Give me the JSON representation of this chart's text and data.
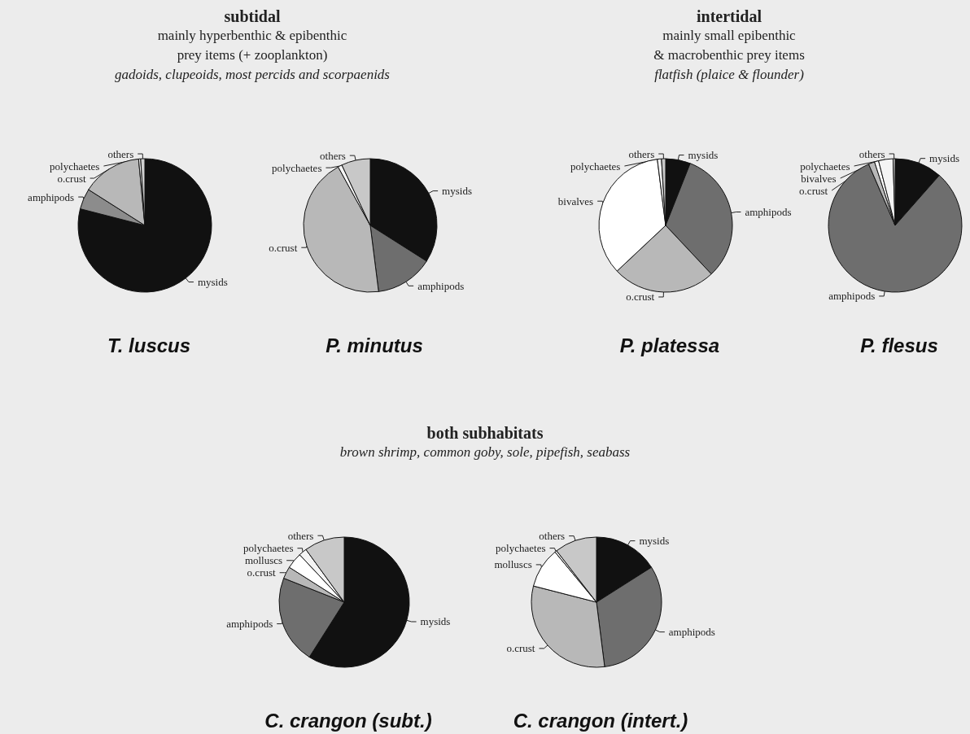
{
  "chart_data": [
    {
      "type": "pie",
      "title": "T. luscus",
      "annotations": [
        "subtidal",
        "mainly hyperbenthic & epibenthic",
        "prey items (+ zooplankton)",
        "gadoids, clupeoids, most percids and scorpaenids"
      ],
      "categories": [
        "mysids",
        "amphipods",
        "o.crust",
        "polychaetes",
        "others"
      ],
      "values": [
        79,
        5,
        14.5,
        0.5,
        1
      ],
      "colors": [
        "#111111",
        "#8c8c8c",
        "#b8b8b8",
        "#f4f4f4",
        "#d0d0d0"
      ]
    },
    {
      "type": "pie",
      "title": "P. minutus",
      "categories": [
        "mysids",
        "amphipods",
        "o.crust",
        "polychaetes",
        "others"
      ],
      "values": [
        34,
        14,
        44,
        1,
        7
      ],
      "colors": [
        "#111111",
        "#6e6e6e",
        "#b8b8b8",
        "#f4f4f4",
        "#c8c8c8"
      ]
    },
    {
      "type": "pie",
      "title": "P. platessa",
      "annotations": [
        "intertidal",
        "mainly small epibenthic",
        "& macrobenthic prey items",
        "flatfish (plaice & flounder)"
      ],
      "categories": [
        "mysids",
        "amphipods",
        "o.crust",
        "bivalves",
        "polychaetes",
        "others"
      ],
      "values": [
        6,
        32,
        25,
        35,
        1,
        1
      ],
      "colors": [
        "#111111",
        "#6e6e6e",
        "#b8b8b8",
        "#ffffff",
        "#f4f4f4",
        "#c8c8c8"
      ]
    },
    {
      "type": "pie",
      "title": "P. flesus",
      "categories": [
        "mysids",
        "amphipods",
        "o.crust",
        "bivalves",
        "polychaetes",
        "others"
      ],
      "values": [
        11.5,
        82,
        1.5,
        1,
        3.5,
        0.5
      ],
      "colors": [
        "#111111",
        "#6e6e6e",
        "#b8b8b8",
        "#ffffff",
        "#f4f4f4",
        "#c8c8c8"
      ]
    },
    {
      "type": "pie",
      "title": "C. crangon (subt.)",
      "annotations": [
        "both subhabitats",
        "brown shrimp, common goby, sole, pipefish, seabass"
      ],
      "categories": [
        "mysids",
        "amphipods",
        "o.crust",
        "molluscs",
        "polychaetes",
        "others"
      ],
      "values": [
        59,
        22,
        3,
        4,
        2,
        10
      ],
      "colors": [
        "#111111",
        "#6e6e6e",
        "#b8b8b8",
        "#ffffff",
        "#f4f4f4",
        "#c8c8c8"
      ]
    },
    {
      "type": "pie",
      "title": "C. crangon (intert.)",
      "categories": [
        "mysids",
        "amphipods",
        "o.crust",
        "molluscs",
        "polychaetes",
        "others"
      ],
      "values": [
        16,
        32,
        31,
        10,
        0.5,
        10.5
      ],
      "colors": [
        "#111111",
        "#6e6e6e",
        "#b8b8b8",
        "#ffffff",
        "#f4f4f4",
        "#c8c8c8"
      ]
    }
  ]
}
